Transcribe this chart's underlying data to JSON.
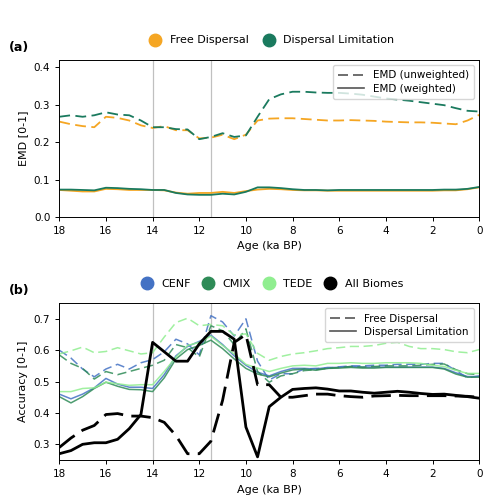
{
  "panel_a": {
    "x": [
      18,
      17.5,
      17,
      16.5,
      16,
      15.5,
      15,
      14.5,
      14,
      13.5,
      13,
      12.5,
      12,
      11.5,
      11,
      10.5,
      10,
      9.5,
      9,
      8.5,
      8,
      7.5,
      7,
      6.5,
      6,
      5.5,
      5,
      4.5,
      4,
      3.5,
      3,
      2.5,
      2,
      1.5,
      1,
      0.5,
      0
    ],
    "fd_unweighted": [
      0.255,
      0.248,
      0.243,
      0.24,
      0.268,
      0.265,
      0.258,
      0.245,
      0.238,
      0.243,
      0.232,
      0.232,
      0.21,
      0.212,
      0.22,
      0.208,
      0.22,
      0.258,
      0.263,
      0.264,
      0.264,
      0.262,
      0.26,
      0.258,
      0.258,
      0.259,
      0.258,
      0.257,
      0.255,
      0.254,
      0.253,
      0.253,
      0.252,
      0.25,
      0.248,
      0.258,
      0.273
    ],
    "dl_unweighted": [
      0.268,
      0.272,
      0.268,
      0.272,
      0.28,
      0.274,
      0.272,
      0.258,
      0.24,
      0.24,
      0.235,
      0.234,
      0.208,
      0.214,
      0.224,
      0.214,
      0.218,
      0.268,
      0.315,
      0.328,
      0.335,
      0.335,
      0.333,
      0.332,
      0.332,
      0.33,
      0.327,
      0.322,
      0.317,
      0.314,
      0.311,
      0.307,
      0.303,
      0.299,
      0.291,
      0.284,
      0.282
    ],
    "fd_weighted": [
      0.072,
      0.07,
      0.068,
      0.068,
      0.075,
      0.074,
      0.072,
      0.072,
      0.072,
      0.071,
      0.065,
      0.062,
      0.064,
      0.064,
      0.067,
      0.064,
      0.069,
      0.073,
      0.075,
      0.074,
      0.072,
      0.071,
      0.071,
      0.07,
      0.07,
      0.07,
      0.07,
      0.07,
      0.07,
      0.07,
      0.07,
      0.07,
      0.07,
      0.071,
      0.071,
      0.074,
      0.079
    ],
    "dl_weighted": [
      0.073,
      0.073,
      0.072,
      0.071,
      0.078,
      0.077,
      0.075,
      0.074,
      0.072,
      0.072,
      0.064,
      0.06,
      0.059,
      0.059,
      0.062,
      0.06,
      0.067,
      0.079,
      0.079,
      0.077,
      0.074,
      0.072,
      0.072,
      0.071,
      0.072,
      0.072,
      0.072,
      0.072,
      0.072,
      0.072,
      0.072,
      0.072,
      0.072,
      0.073,
      0.073,
      0.075,
      0.08
    ],
    "vlines": [
      14.0,
      11.5
    ],
    "ylim": [
      0.0,
      0.42
    ],
    "yticks": [
      0.0,
      0.1,
      0.2,
      0.3,
      0.4
    ],
    "ylabel": "EMD [0-1]",
    "xlabel": "Age (ka BP)",
    "fd_color": "#F5A623",
    "dl_color": "#1A7A5E",
    "panel_label": "(a)"
  },
  "panel_b": {
    "x": [
      18,
      17.5,
      17,
      16.5,
      16,
      15.5,
      15,
      14.5,
      14,
      13.5,
      13,
      12.5,
      12,
      11.5,
      11,
      10.5,
      10,
      9.5,
      9,
      8.5,
      8,
      7.5,
      7,
      6.5,
      6,
      5.5,
      5,
      4.5,
      4,
      3.5,
      3,
      2.5,
      2,
      1.5,
      1,
      0.5,
      0
    ],
    "cenf_fd": [
      0.6,
      0.575,
      0.54,
      0.515,
      0.54,
      0.555,
      0.54,
      0.56,
      0.57,
      0.595,
      0.635,
      0.62,
      0.585,
      0.71,
      0.69,
      0.645,
      0.7,
      0.565,
      0.505,
      0.525,
      0.525,
      0.54,
      0.542,
      0.542,
      0.547,
      0.55,
      0.55,
      0.552,
      0.552,
      0.555,
      0.555,
      0.555,
      0.558,
      0.558,
      0.535,
      0.512,
      0.518
    ],
    "cenf_dl": [
      0.46,
      0.445,
      0.46,
      0.48,
      0.51,
      0.492,
      0.482,
      0.482,
      0.478,
      0.522,
      0.582,
      0.612,
      0.628,
      0.648,
      0.618,
      0.582,
      0.552,
      0.53,
      0.518,
      0.532,
      0.542,
      0.542,
      0.54,
      0.545,
      0.545,
      0.548,
      0.546,
      0.546,
      0.546,
      0.546,
      0.546,
      0.546,
      0.546,
      0.542,
      0.528,
      0.516,
      0.516
    ],
    "cmix_fd": [
      0.585,
      0.558,
      0.542,
      0.508,
      0.532,
      0.522,
      0.532,
      0.542,
      0.552,
      0.568,
      0.618,
      0.608,
      0.578,
      0.678,
      0.662,
      0.618,
      0.668,
      0.532,
      0.498,
      0.518,
      0.525,
      0.535,
      0.538,
      0.542,
      0.545,
      0.548,
      0.546,
      0.548,
      0.55,
      0.55,
      0.55,
      0.552,
      0.555,
      0.556,
      0.538,
      0.525,
      0.522
    ],
    "cmix_dl": [
      0.452,
      0.432,
      0.452,
      0.478,
      0.498,
      0.485,
      0.475,
      0.474,
      0.468,
      0.512,
      0.572,
      0.602,
      0.615,
      0.632,
      0.605,
      0.572,
      0.542,
      0.524,
      0.515,
      0.527,
      0.537,
      0.54,
      0.536,
      0.542,
      0.543,
      0.545,
      0.543,
      0.543,
      0.545,
      0.545,
      0.545,
      0.545,
      0.545,
      0.54,
      0.524,
      0.514,
      0.514
    ],
    "tede_fd": [
      0.588,
      0.598,
      0.61,
      0.592,
      0.596,
      0.608,
      0.598,
      0.588,
      0.592,
      0.642,
      0.688,
      0.702,
      0.678,
      0.682,
      0.678,
      0.648,
      0.652,
      0.59,
      0.568,
      0.58,
      0.588,
      0.592,
      0.598,
      0.605,
      0.608,
      0.612,
      0.612,
      0.615,
      0.622,
      0.625,
      0.612,
      0.605,
      0.605,
      0.602,
      0.595,
      0.592,
      0.602
    ],
    "tede_dl": [
      0.468,
      0.468,
      0.478,
      0.48,
      0.498,
      0.493,
      0.488,
      0.49,
      0.49,
      0.532,
      0.578,
      0.615,
      0.625,
      0.645,
      0.615,
      0.588,
      0.555,
      0.543,
      0.532,
      0.542,
      0.55,
      0.552,
      0.55,
      0.558,
      0.558,
      0.56,
      0.558,
      0.558,
      0.56,
      0.56,
      0.56,
      0.558,
      0.552,
      0.548,
      0.536,
      0.526,
      0.526
    ],
    "allb_fd": [
      0.29,
      0.32,
      0.345,
      0.36,
      0.395,
      0.398,
      0.39,
      0.39,
      0.385,
      0.37,
      0.328,
      0.27,
      0.27,
      0.31,
      0.44,
      0.625,
      0.65,
      0.49,
      0.49,
      0.45,
      0.45,
      0.455,
      0.46,
      0.46,
      0.455,
      0.452,
      0.45,
      0.454,
      0.455,
      0.456,
      0.455,
      0.455,
      0.455,
      0.455,
      0.454,
      0.453,
      0.45
    ],
    "allb_dl": [
      0.27,
      0.28,
      0.3,
      0.305,
      0.305,
      0.316,
      0.35,
      0.395,
      0.625,
      0.595,
      0.565,
      0.565,
      0.62,
      0.66,
      0.66,
      0.635,
      0.355,
      0.26,
      0.42,
      0.45,
      0.475,
      0.478,
      0.48,
      0.476,
      0.47,
      0.47,
      0.466,
      0.463,
      0.466,
      0.469,
      0.466,
      0.462,
      0.459,
      0.46,
      0.456,
      0.452,
      0.447
    ],
    "vlines": [
      14.0,
      11.5
    ],
    "ylim": [
      0.25,
      0.75
    ],
    "yticks": [
      0.3,
      0.4,
      0.5,
      0.6,
      0.7
    ],
    "ylabel": "Accuracy [0-1]",
    "xlabel": "Age (ka BP)",
    "cenf_color": "#4472C4",
    "cmix_color": "#2E8B57",
    "tede_color": "#90EE90",
    "allb_color": "#000000",
    "panel_label": "(b)"
  },
  "xticks": [
    18,
    16,
    14,
    12,
    10,
    8,
    6,
    4,
    2,
    0
  ],
  "vline_color": "#C0C0C0"
}
